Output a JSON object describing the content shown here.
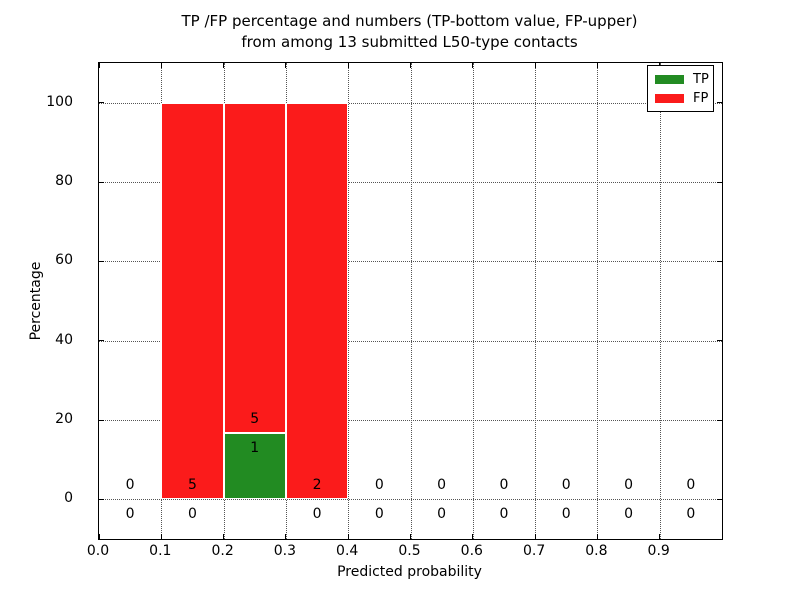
{
  "figure": {
    "title_line1": "TP /FP percentage and numbers (TP-bottom value, FP-upper)",
    "title_line2": "from among 13 submitted L50-type contacts",
    "xlabel": "Predicted probability",
    "ylabel": "Percentage"
  },
  "chart_data": {
    "type": "bar",
    "stacked": true,
    "title": "TP /FP percentage and numbers (TP-bottom value, FP-upper) from among 13 submitted L50-type contacts",
    "xlabel": "Predicted probability",
    "ylabel": "Percentage",
    "xlim": [
      0.0,
      1.0
    ],
    "ylim": [
      -10,
      110
    ],
    "xtick_labels": [
      "0.0",
      "0.1",
      "0.2",
      "0.3",
      "0.4",
      "0.5",
      "0.6",
      "0.7",
      "0.8",
      "0.9"
    ],
    "xtick_values": [
      0.0,
      0.1,
      0.2,
      0.3,
      0.4,
      0.5,
      0.6,
      0.7,
      0.8,
      0.9
    ],
    "ytick_labels": [
      "0",
      "20",
      "40",
      "60",
      "80",
      "100"
    ],
    "ytick_values": [
      0,
      20,
      40,
      60,
      80,
      100
    ],
    "grid": true,
    "grid_style": "dotted",
    "legend_position": "upper right",
    "bar_width": 0.1,
    "bin_centers": [
      0.05,
      0.15,
      0.25,
      0.35,
      0.45,
      0.55,
      0.65,
      0.75,
      0.85,
      0.95
    ],
    "series": [
      {
        "name": "TP",
        "color": "#228b22",
        "values_pct": [
          0,
          0,
          16.67,
          0,
          0,
          0,
          0,
          0,
          0,
          0
        ],
        "counts": [
          0,
          0,
          1,
          0,
          0,
          0,
          0,
          0,
          0,
          0
        ]
      },
      {
        "name": "FP",
        "color": "#fb1b1b",
        "values_pct": [
          0,
          100,
          83.33,
          100,
          0,
          0,
          0,
          0,
          0,
          0
        ],
        "counts": [
          0,
          5,
          5,
          2,
          0,
          0,
          0,
          0,
          0,
          0
        ]
      }
    ],
    "annotation_offsets": {
      "fp_label_dy": 3.6,
      "tp_label_dy": -3.7
    },
    "total_contacts": 13,
    "bar_edge_color": "#ffffff",
    "axes_color": "#000000"
  }
}
